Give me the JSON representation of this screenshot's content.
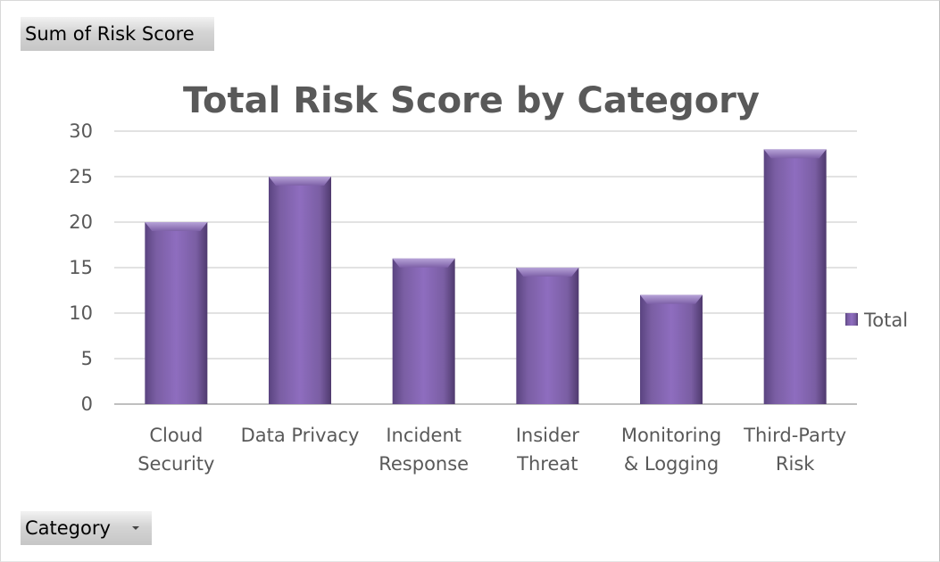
{
  "pivot": {
    "value_field_label": "Sum of Risk Score",
    "axis_field_label": "Category"
  },
  "colors": {
    "bar": "#8064a2",
    "bar_light": "#9d84c4",
    "bar_dark": "#4f3a6e",
    "gridline": "#d9d9d9",
    "text": "#595959"
  },
  "chart_data": {
    "type": "bar",
    "title": "Total Risk Score by Category",
    "categories": [
      [
        "Cloud",
        "Security"
      ],
      [
        "Data Privacy"
      ],
      [
        "Incident",
        "Response"
      ],
      [
        "Insider",
        "Threat"
      ],
      [
        "Monitoring",
        "& Logging"
      ],
      [
        "Third-Party",
        "Risk"
      ]
    ],
    "series": [
      {
        "name": "Total",
        "values": [
          20,
          25,
          16,
          15,
          12,
          28
        ]
      }
    ],
    "ylim": [
      0,
      30
    ],
    "yticks": [
      0,
      5,
      10,
      15,
      20,
      25,
      30
    ],
    "grid": true,
    "legend": "right"
  }
}
